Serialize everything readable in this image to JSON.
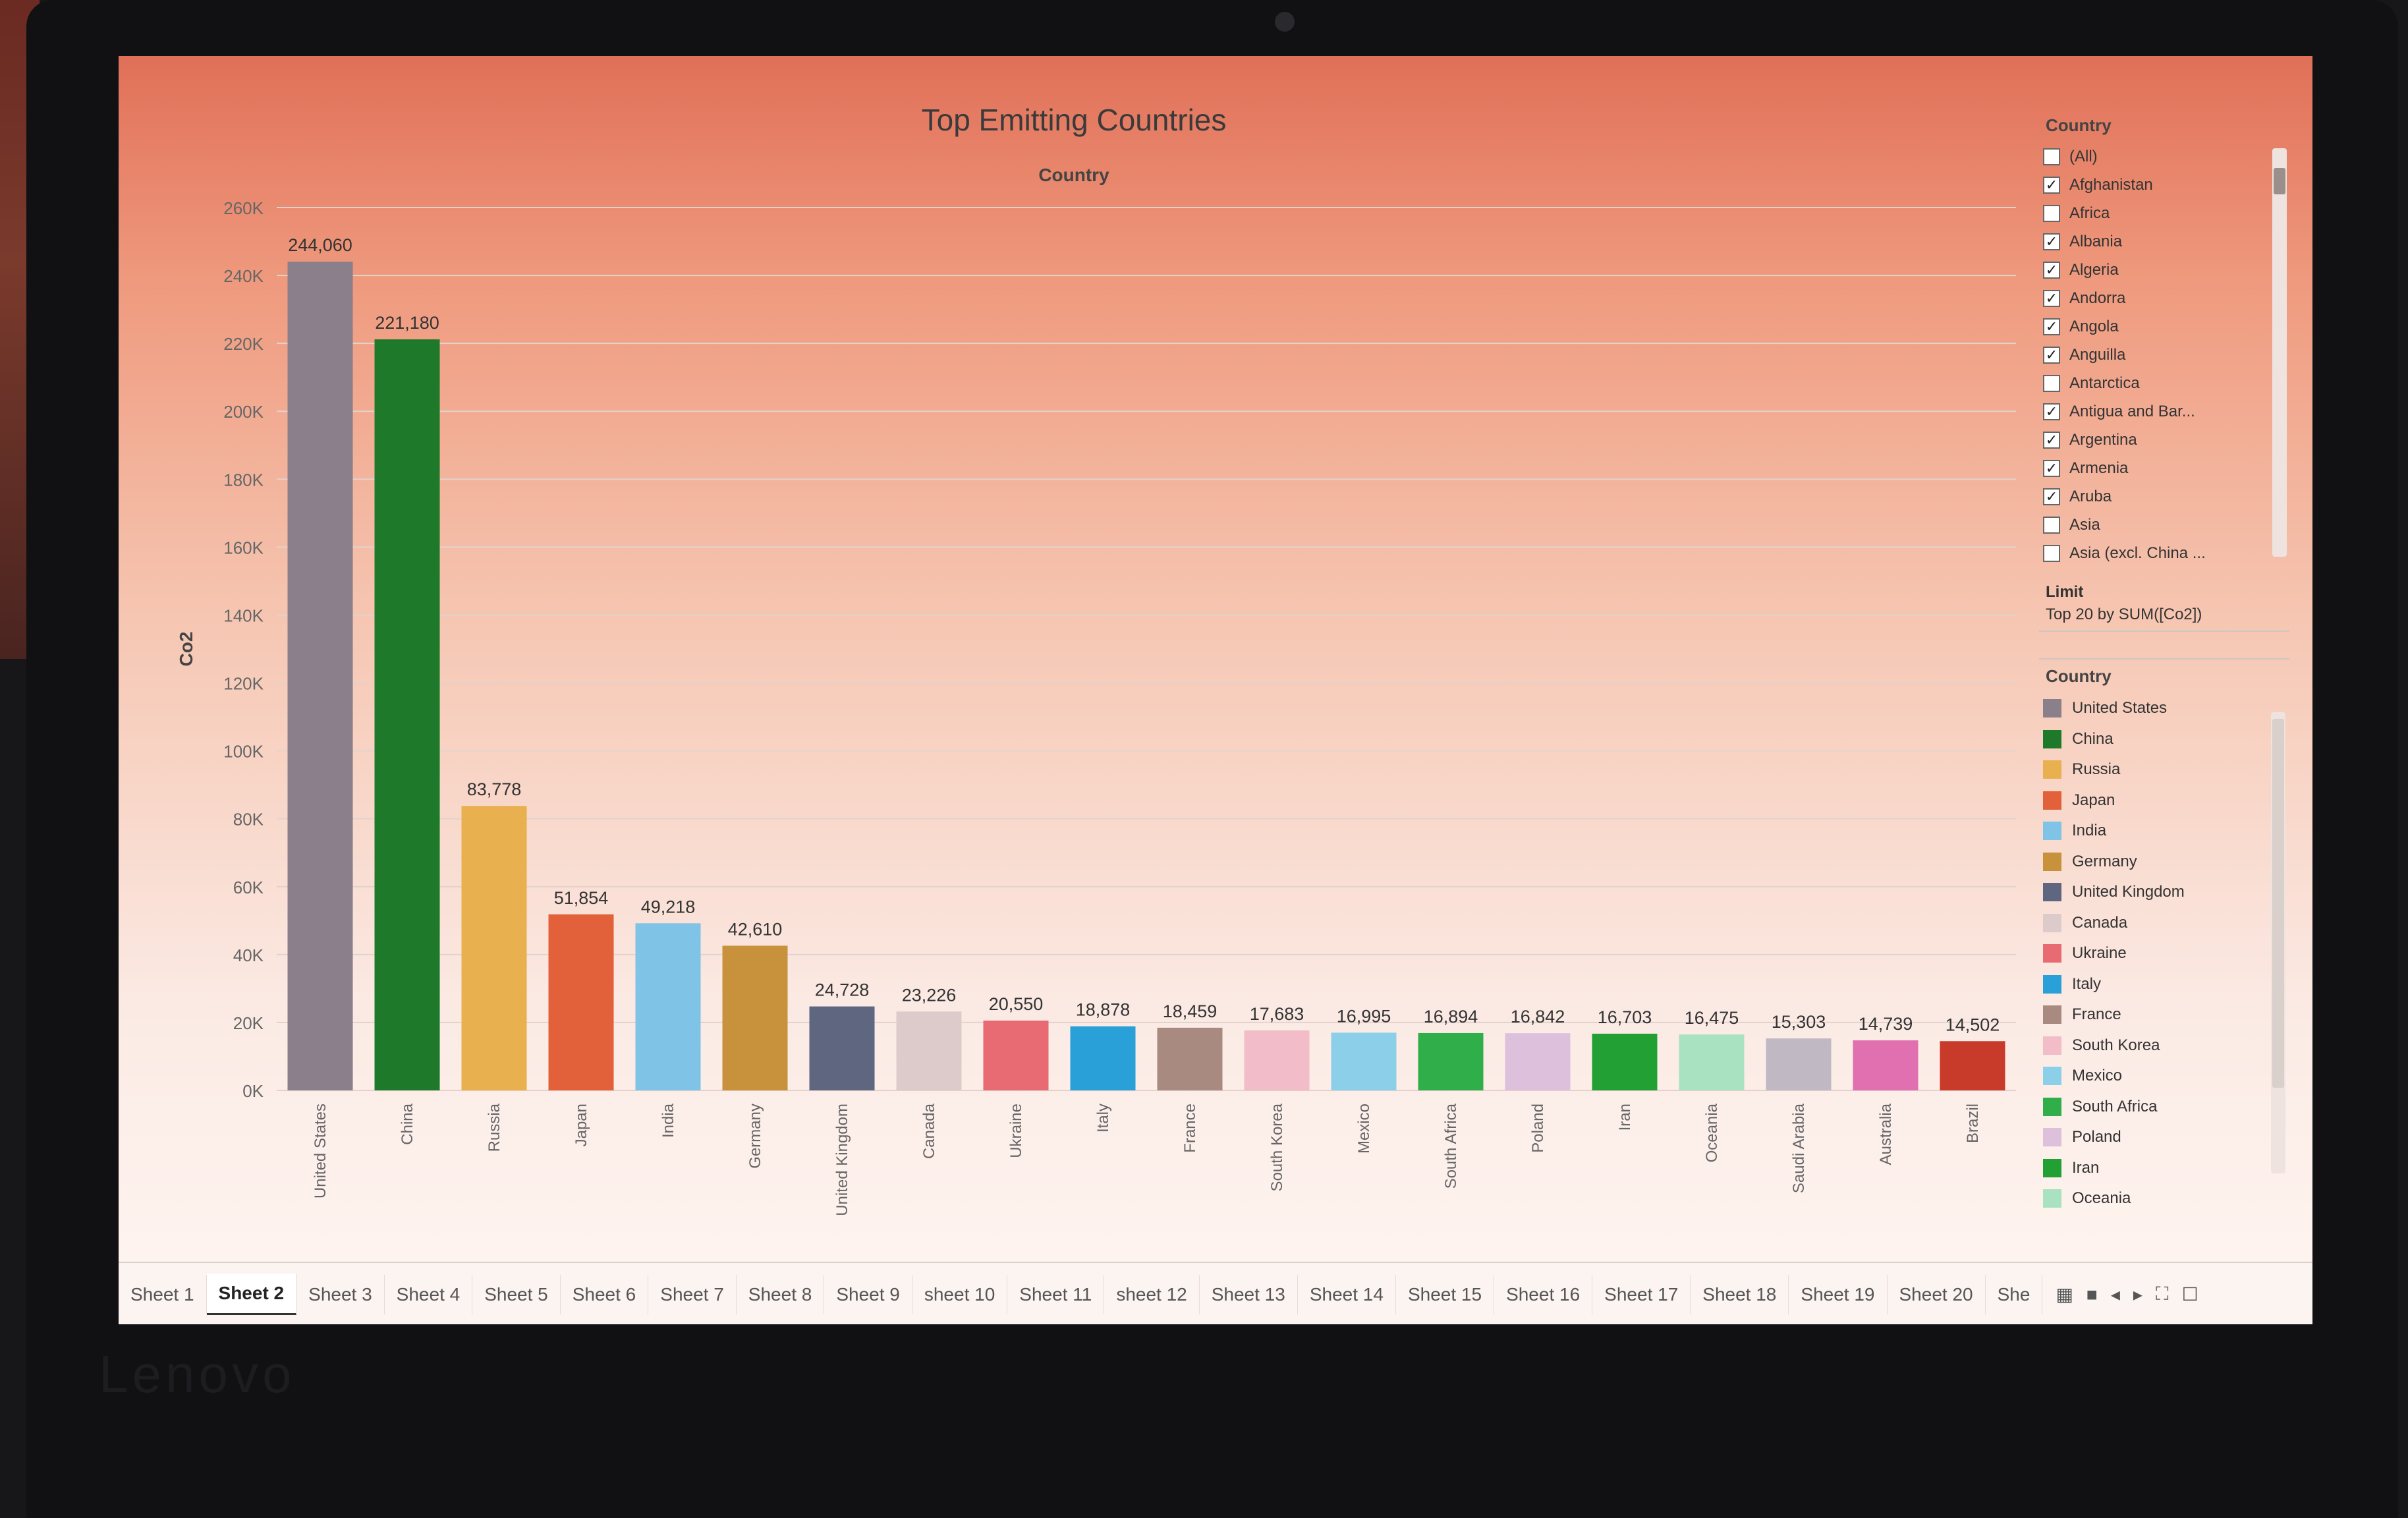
{
  "device": {
    "brand": "Lenovo"
  },
  "worksheet": {
    "title": "Top Emitting Countries",
    "column_header": "Country"
  },
  "chart_data": {
    "type": "bar",
    "title": "Top Emitting Countries",
    "xlabel": "Country",
    "ylabel": "Co2",
    "ylim": [
      0,
      260000
    ],
    "yticks": [
      0,
      20000,
      40000,
      60000,
      80000,
      100000,
      120000,
      140000,
      160000,
      180000,
      200000,
      220000,
      240000,
      260000
    ],
    "ytick_labels": [
      "0K",
      "20K",
      "40K",
      "60K",
      "80K",
      "100K",
      "120K",
      "140K",
      "160K",
      "180K",
      "200K",
      "220K",
      "240K",
      "260K"
    ],
    "categories": [
      "United States",
      "China",
      "Russia",
      "Japan",
      "India",
      "Germany",
      "United Kingdom",
      "Canada",
      "Ukraine",
      "Italy",
      "France",
      "South Korea",
      "Mexico",
      "South Africa",
      "Poland",
      "Iran",
      "Oceania",
      "Saudi Arabia",
      "Australia",
      "Brazil"
    ],
    "values": [
      244060,
      221180,
      83778,
      51854,
      49218,
      42610,
      24728,
      23226,
      20550,
      18878,
      18459,
      17683,
      16995,
      16894,
      16842,
      16703,
      16475,
      15303,
      14739,
      14502
    ],
    "value_labels": [
      "244,060",
      "221,180",
      "83,778",
      "51,854",
      "49,218",
      "42,610",
      "24,728",
      "23,226",
      "20,550",
      "18,878",
      "18,459",
      "17,683",
      "16,995",
      "16,894",
      "16,842",
      "16,703",
      "16,475",
      "15,303",
      "14,739",
      "14,502"
    ],
    "colors": [
      "#8a7f8a",
      "#1e7a2a",
      "#e8b04e",
      "#e2603a",
      "#7fc3e6",
      "#c8913c",
      "#5f6680",
      "#ddcbcc",
      "#e86a72",
      "#2aa0d8",
      "#a88a80",
      "#f2bcc8",
      "#8ccfe8",
      "#2fae4a",
      "#dcc0dc",
      "#22a034",
      "#a8e2c0",
      "#c0b8c2",
      "#e070b0",
      "#c83a2a"
    ],
    "grid": true,
    "legend": "right"
  },
  "filter": {
    "title": "Country",
    "items": [
      {
        "label": "(All)",
        "checked": false
      },
      {
        "label": "Afghanistan",
        "checked": true
      },
      {
        "label": "Africa",
        "checked": false
      },
      {
        "label": "Albania",
        "checked": true
      },
      {
        "label": "Algeria",
        "checked": true
      },
      {
        "label": "Andorra",
        "checked": true
      },
      {
        "label": "Angola",
        "checked": true
      },
      {
        "label": "Anguilla",
        "checked": true
      },
      {
        "label": "Antarctica",
        "checked": false
      },
      {
        "label": "Antigua and Bar...",
        "checked": true
      },
      {
        "label": "Argentina",
        "checked": true
      },
      {
        "label": "Armenia",
        "checked": true
      },
      {
        "label": "Aruba",
        "checked": true
      },
      {
        "label": "Asia",
        "checked": false
      },
      {
        "label": "Asia (excl. China ...",
        "checked": false
      }
    ],
    "limit_label": "Limit",
    "limit_value": "Top 20 by SUM([Co2])"
  },
  "legend": {
    "title": "Country",
    "items": [
      {
        "label": "United States",
        "color": "#8a7f8a"
      },
      {
        "label": "China",
        "color": "#1e7a2a"
      },
      {
        "label": "Russia",
        "color": "#e8b04e"
      },
      {
        "label": "Japan",
        "color": "#e2603a"
      },
      {
        "label": "India",
        "color": "#7fc3e6"
      },
      {
        "label": "Germany",
        "color": "#c8913c"
      },
      {
        "label": "United Kingdom",
        "color": "#5f6680"
      },
      {
        "label": "Canada",
        "color": "#ddcbcc"
      },
      {
        "label": "Ukraine",
        "color": "#e86a72"
      },
      {
        "label": "Italy",
        "color": "#2aa0d8"
      },
      {
        "label": "France",
        "color": "#a88a80"
      },
      {
        "label": "South Korea",
        "color": "#f2bcc8"
      },
      {
        "label": "Mexico",
        "color": "#8ccfe8"
      },
      {
        "label": "South Africa",
        "color": "#2fae4a"
      },
      {
        "label": "Poland",
        "color": "#dcc0dc"
      },
      {
        "label": "Iran",
        "color": "#22a034"
      },
      {
        "label": "Oceania",
        "color": "#a8e2c0"
      }
    ]
  },
  "tabs": {
    "items": [
      "Sheet 1",
      "Sheet 2",
      "Sheet 3",
      "Sheet 4",
      "Sheet 5",
      "Sheet 6",
      "Sheet 7",
      "Sheet 8",
      "Sheet 9",
      "sheet 10",
      "Sheet 11",
      "sheet 12",
      "Sheet 13",
      "Sheet 14",
      "Sheet 15",
      "Sheet 16",
      "Sheet 17",
      "Sheet 18",
      "Sheet 19",
      "Sheet 20",
      "She"
    ],
    "active_index": 1
  }
}
